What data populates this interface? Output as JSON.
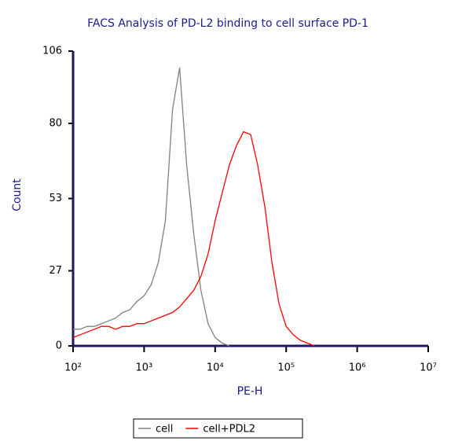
{
  "chart_data": {
    "type": "line",
    "title": "FACS Analysis of PD-L2 binding to cell surface PD-1",
    "xlabel": "PE-H",
    "ylabel": "Count",
    "xscale": "log",
    "xlim": [
      100,
      10000000
    ],
    "xticks": [
      {
        "value": 100,
        "label": "10²"
      },
      {
        "value": 1000,
        "label": "10³"
      },
      {
        "value": 10000,
        "label": "10⁴"
      },
      {
        "value": 100000,
        "label": "10⁵"
      },
      {
        "value": 1000000,
        "label": "10⁶"
      },
      {
        "value": 10000000,
        "label": "10⁷"
      }
    ],
    "ylim": [
      0,
      106
    ],
    "yticks": [
      0,
      27,
      53,
      80,
      106
    ],
    "legend": "bottom",
    "x": [
      100,
      126,
      158,
      200,
      251,
      316,
      398,
      501,
      631,
      794,
      1000,
      1259,
      1585,
      1995,
      2512,
      3162,
      3981,
      5012,
      6310,
      7943,
      10000,
      12589,
      15849,
      19953,
      25119,
      31623,
      39811,
      50119,
      63096,
      79433,
      100000,
      125893,
      158489,
      199526,
      251189,
      316228
    ],
    "series": [
      {
        "name": "cell",
        "color": "#808080",
        "values": [
          6,
          6,
          7,
          7,
          8,
          9,
          10,
          12,
          13,
          16,
          18,
          22,
          30,
          45,
          85,
          100,
          65,
          40,
          20,
          8,
          3,
          1,
          0,
          null,
          null,
          null,
          null,
          null,
          null,
          null,
          null,
          null,
          null,
          null,
          null,
          null
        ]
      },
      {
        "name": "cell+PDL2",
        "color": "#ff0000",
        "values": [
          3,
          4,
          5,
          6,
          7,
          7,
          6,
          7,
          7,
          8,
          8,
          9,
          10,
          11,
          12,
          14,
          17,
          20,
          25,
          33,
          45,
          55,
          65,
          72,
          77,
          76,
          65,
          50,
          30,
          15,
          7,
          4,
          2,
          1,
          0,
          null
        ]
      }
    ]
  }
}
